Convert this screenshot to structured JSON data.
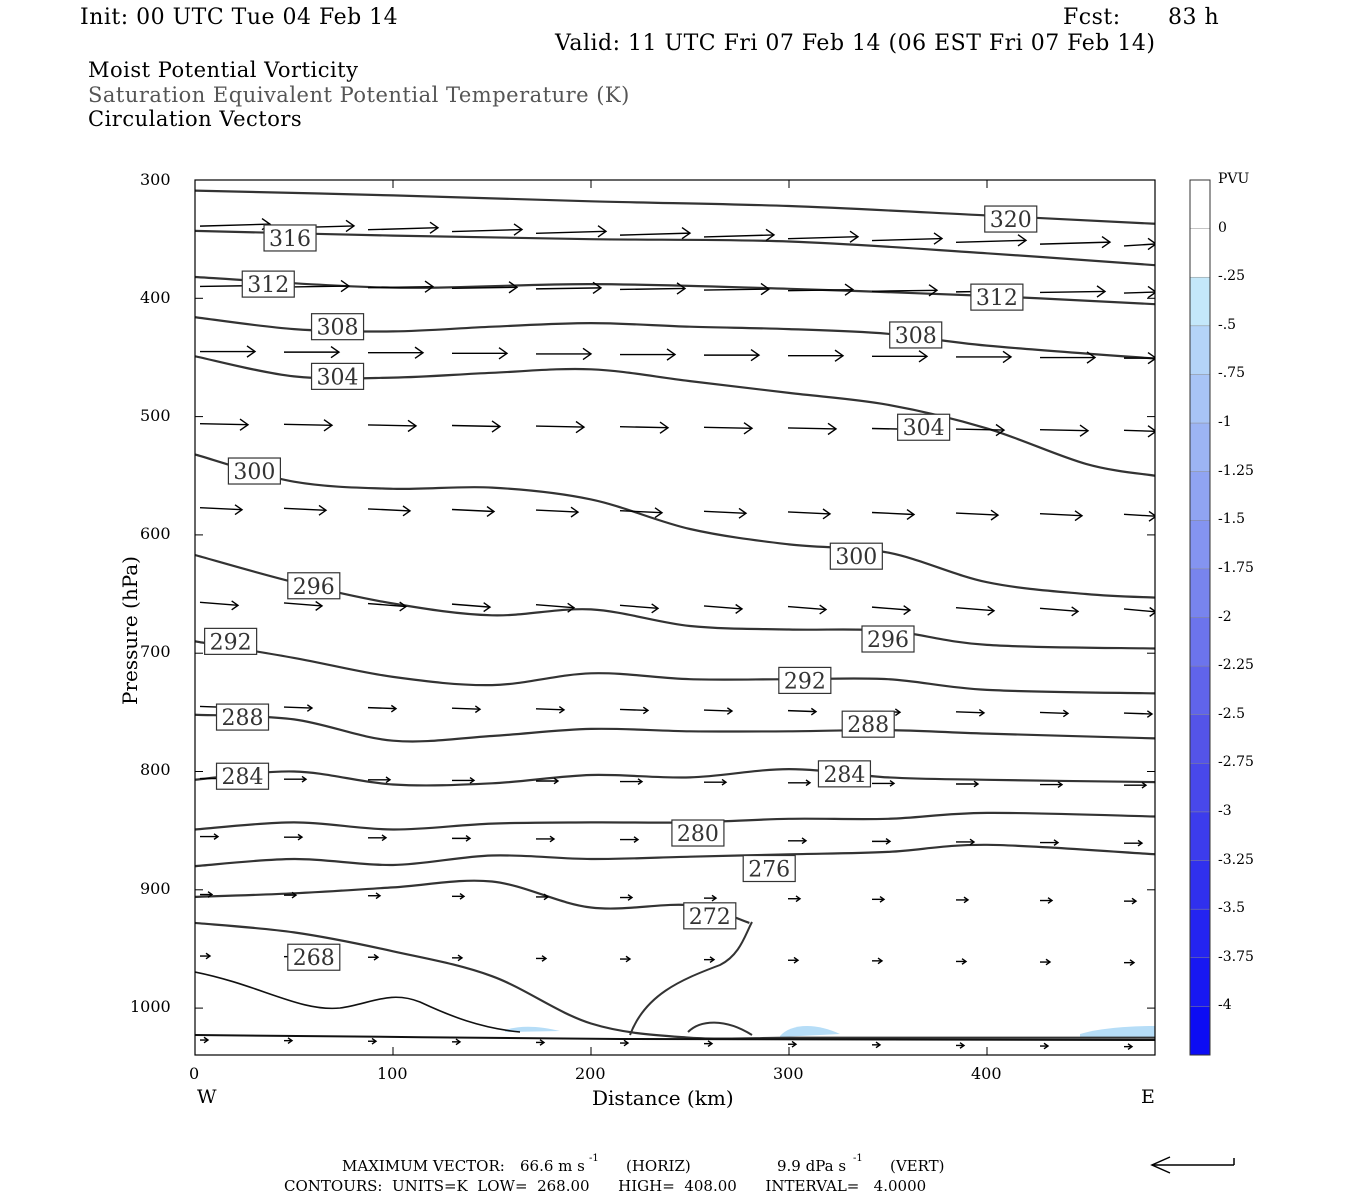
{
  "header": {
    "init": "Init: 00 UTC Tue 04 Feb 14",
    "fcst_label": "Fcst:",
    "fcst_value": "83 h",
    "valid": "Valid: 11 UTC Fri 07 Feb 14 (06 EST Fri 07 Feb 14)"
  },
  "fields": {
    "line1": "Moist Potential Vorticity",
    "line2": "Saturation Equivalent Potential Temperature (K)",
    "line3": "Circulation Vectors"
  },
  "axes": {
    "ylabel": "Pressure (hPa)",
    "xlabel": "Distance (km)",
    "yticks": [
      "300",
      "400",
      "500",
      "600",
      "700",
      "800",
      "900",
      "1000"
    ],
    "xticks": [
      "0",
      "100",
      "200",
      "300",
      "400"
    ],
    "west": "W",
    "east": "E"
  },
  "colorbar": {
    "title": "PVU",
    "labels": [
      "0",
      "-.25",
      "-.5",
      "-.75",
      "-1",
      "-1.25",
      "-1.5",
      "-1.75",
      "-2",
      "-2.25",
      "-2.5",
      "-2.75",
      "-3",
      "-3.25",
      "-3.5",
      "-3.75",
      "-4"
    ],
    "colors": [
      "#ffffff",
      "#c4e8fa",
      "#b4d4f8",
      "#a8c4f6",
      "#9cb4f4",
      "#90a4f2",
      "#8494f0",
      "#7884ee",
      "#6c74ec",
      "#6064ea",
      "#5454e8",
      "#4848ea",
      "#3c3cec",
      "#3030ee",
      "#2424f0",
      "#1818f2",
      "#0c0cf4"
    ]
  },
  "footer": {
    "max_vector_label": "MAXIMUM VECTOR:",
    "max_vector_horiz": "66.6 m s",
    "horiz_tag": "(HORIZ)",
    "max_vector_vert": "9.9 dPa s",
    "vert_tag": "(VERT)",
    "exponent": "-1",
    "contours": "CONTOURS:  UNITS=K  LOW=  268.00      HIGH=  408.00      INTERVAL=   4.0000"
  },
  "chart_data": {
    "type": "line",
    "x_range": [
      0,
      485
    ],
    "y_range": [
      300,
      1030
    ],
    "y_axis": "pressure (inverted)",
    "contour_labels": [
      "320",
      "316",
      "312",
      "312",
      "308",
      "308",
      "304",
      "304",
      "300",
      "300",
      "296",
      "296",
      "292",
      "292",
      "288",
      "288",
      "284",
      "284",
      "280",
      "276",
      "272",
      "268"
    ],
    "series": [
      {
        "name": "320",
        "x": [
          0,
          100,
          200,
          300,
          400,
          485
        ],
        "y": [
          309,
          313,
          318,
          322,
          330,
          337
        ]
      },
      {
        "name": "316",
        "x": [
          0,
          100,
          200,
          300,
          400,
          485
        ],
        "y": [
          343,
          347,
          350,
          352,
          362,
          372
        ]
      },
      {
        "name": "312",
        "x": [
          0,
          100,
          200,
          300,
          400,
          485
        ],
        "y": [
          382,
          391,
          388,
          392,
          398,
          405
        ]
      },
      {
        "name": "308",
        "x": [
          0,
          50,
          100,
          150,
          200,
          250,
          300,
          350,
          400,
          485
        ],
        "y": [
          416,
          426,
          428,
          424,
          421,
          424,
          426,
          430,
          440,
          451
        ]
      },
      {
        "name": "304",
        "x": [
          0,
          50,
          100,
          150,
          200,
          250,
          300,
          350,
          400,
          450,
          485
        ],
        "y": [
          449,
          466,
          467,
          463,
          460,
          470,
          480,
          490,
          510,
          540,
          550
        ]
      },
      {
        "name": "300",
        "x": [
          0,
          50,
          100,
          150,
          200,
          250,
          300,
          350,
          400,
          450,
          485
        ],
        "y": [
          532,
          555,
          561,
          560,
          570,
          595,
          608,
          615,
          640,
          650,
          653
        ]
      },
      {
        "name": "296",
        "x": [
          0,
          50,
          100,
          150,
          200,
          250,
          300,
          350,
          400,
          485
        ],
        "y": [
          617,
          640,
          658,
          668,
          663,
          677,
          680,
          681,
          693,
          696
        ]
      },
      {
        "name": "292",
        "x": [
          0,
          50,
          100,
          150,
          200,
          250,
          300,
          350,
          400,
          485
        ],
        "y": [
          690,
          704,
          720,
          727,
          717,
          722,
          722,
          722,
          731,
          734
        ]
      },
      {
        "name": "288",
        "x": [
          0,
          50,
          100,
          150,
          200,
          250,
          300,
          350,
          400,
          485
        ],
        "y": [
          752,
          756,
          774,
          770,
          764,
          766,
          766,
          765,
          768,
          772
        ]
      },
      {
        "name": "284",
        "x": [
          0,
          50,
          100,
          150,
          200,
          250,
          300,
          350,
          400,
          485
        ],
        "y": [
          807,
          800,
          811,
          810,
          803,
          805,
          798,
          805,
          807,
          809
        ]
      },
      {
        "name": "280",
        "x": [
          0,
          50,
          100,
          150,
          200,
          250,
          300,
          350,
          400,
          485
        ],
        "y": [
          849,
          843,
          849,
          844,
          843,
          843,
          840,
          840,
          835,
          838
        ]
      },
      {
        "name": "276",
        "x": [
          0,
          50,
          100,
          150,
          200,
          250,
          300,
          350,
          400,
          485
        ],
        "y": [
          880,
          874,
          879,
          871,
          874,
          872,
          870,
          868,
          862,
          870
        ]
      },
      {
        "name": "272",
        "x": [
          0,
          50,
          100,
          150,
          200,
          250,
          280
        ],
        "y": [
          906,
          903,
          898,
          893,
          915,
          913,
          928
        ]
      },
      {
        "name": "268",
        "x": [
          0,
          50,
          100,
          150,
          200,
          250,
          300,
          350,
          400,
          485
        ],
        "y": [
          928,
          936,
          952,
          973,
          1013,
          1025,
          1025,
          1025,
          1025,
          1025
        ]
      }
    ]
  }
}
